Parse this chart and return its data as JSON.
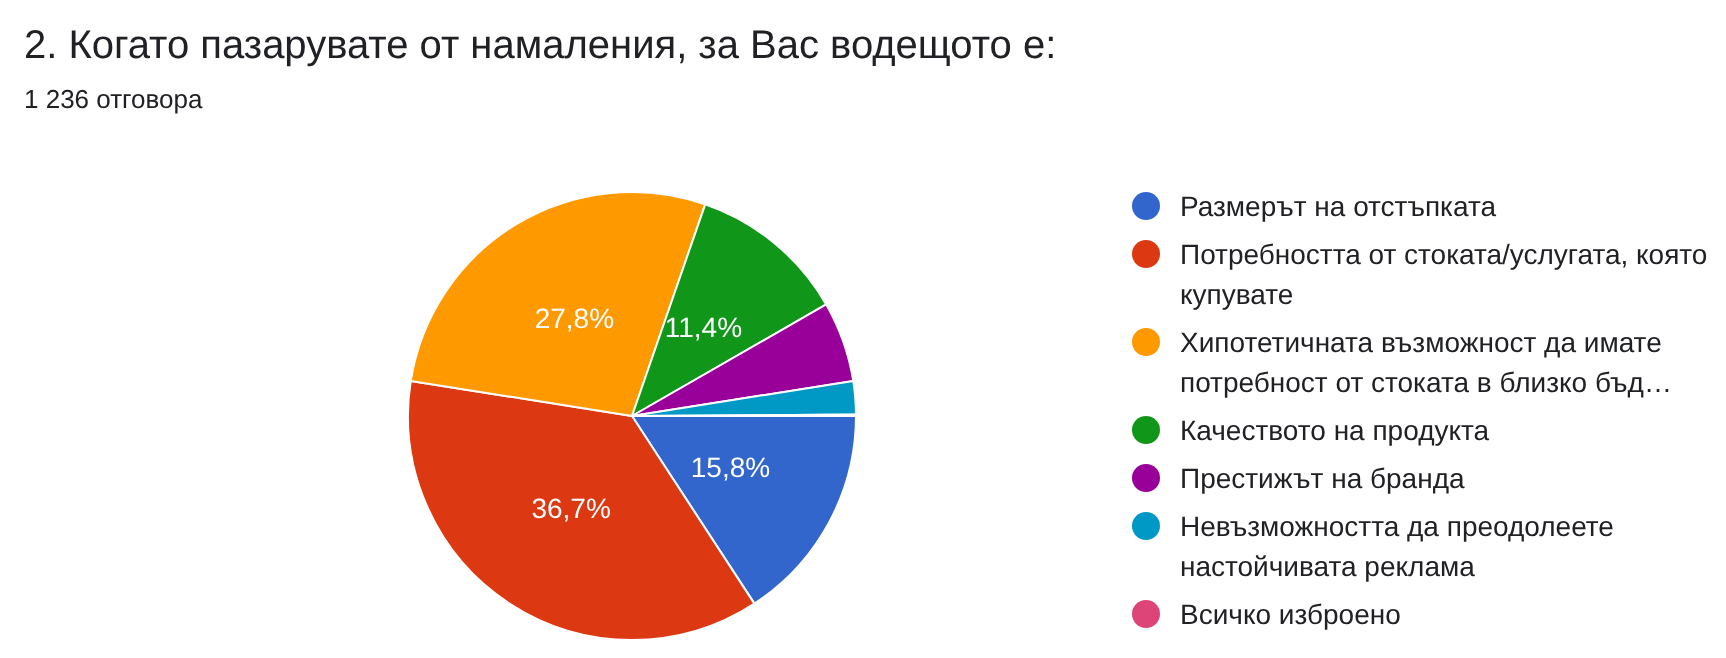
{
  "chart_data": {
    "type": "pie",
    "title": "2. Когато пазарувате от намаления, за Вас водещото е:",
    "subtitle": "1 236 отговора",
    "categories": [
      "Размерът на отстъпката",
      "Потребността от стоката/услугата, която купувате",
      "Хипотетичната възможност да имате потребност от стоката в близко бъд…",
      "Качеството на продукта",
      "Престижът на бранда",
      "Невъзможността да преодолеете настойчивата реклама",
      "Всичко изброено"
    ],
    "values": [
      15.8,
      36.7,
      27.8,
      11.4,
      5.8,
      2.4,
      0.1
    ],
    "colors": [
      "#3366cc",
      "#dc3912",
      "#ff9900",
      "#109618",
      "#990099",
      "#0099c6",
      "#dd4477"
    ],
    "value_labels": [
      "15,8%",
      "36,7%",
      "27,8%",
      "11,4%",
      null,
      null,
      null
    ],
    "legend": "right"
  }
}
